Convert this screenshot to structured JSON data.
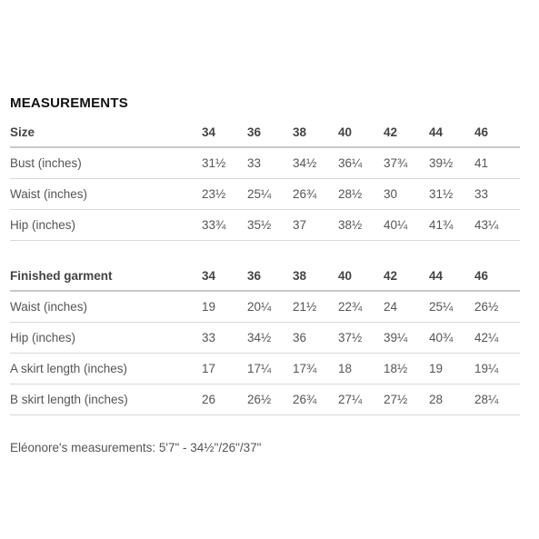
{
  "title": "MEASUREMENTS",
  "body_table": {
    "header": [
      "Size",
      "34",
      "36",
      "38",
      "40",
      "42",
      "44",
      "46"
    ],
    "rows": [
      [
        "Bust (inches)",
        "31½",
        "33",
        "34½",
        "36¼",
        "37¾",
        "39½",
        "41"
      ],
      [
        "Waist (inches)",
        "23½",
        "25¼",
        "26¾",
        "28½",
        "30",
        "31½",
        "33"
      ],
      [
        "Hip (inches)",
        "33¾",
        "35½",
        "37",
        "38½",
        "40¼",
        "41¾",
        "43¼"
      ]
    ]
  },
  "garment_table": {
    "header": [
      "Finished garment",
      "34",
      "36",
      "38",
      "40",
      "42",
      "44",
      "46"
    ],
    "rows": [
      [
        "Waist (inches)",
        "19",
        "20¼",
        "21½",
        "22¾",
        "24",
        "25¼",
        "26½"
      ],
      [
        "Hip (inches)",
        "33",
        "34½",
        "36",
        "37½",
        "39¼",
        "40¾",
        "42¼"
      ],
      [
        "A skirt length (inches)",
        "17",
        "17¼",
        "17¾",
        "18",
        "18½",
        "19",
        "19¼"
      ],
      [
        "B skirt length (inches)",
        "26",
        "26½",
        "26¾",
        "27¼",
        "27½",
        "28",
        "28¼"
      ]
    ]
  },
  "model_note": "Eléonore's measurements: 5'7\" - 34½\"/26\"/37\""
}
